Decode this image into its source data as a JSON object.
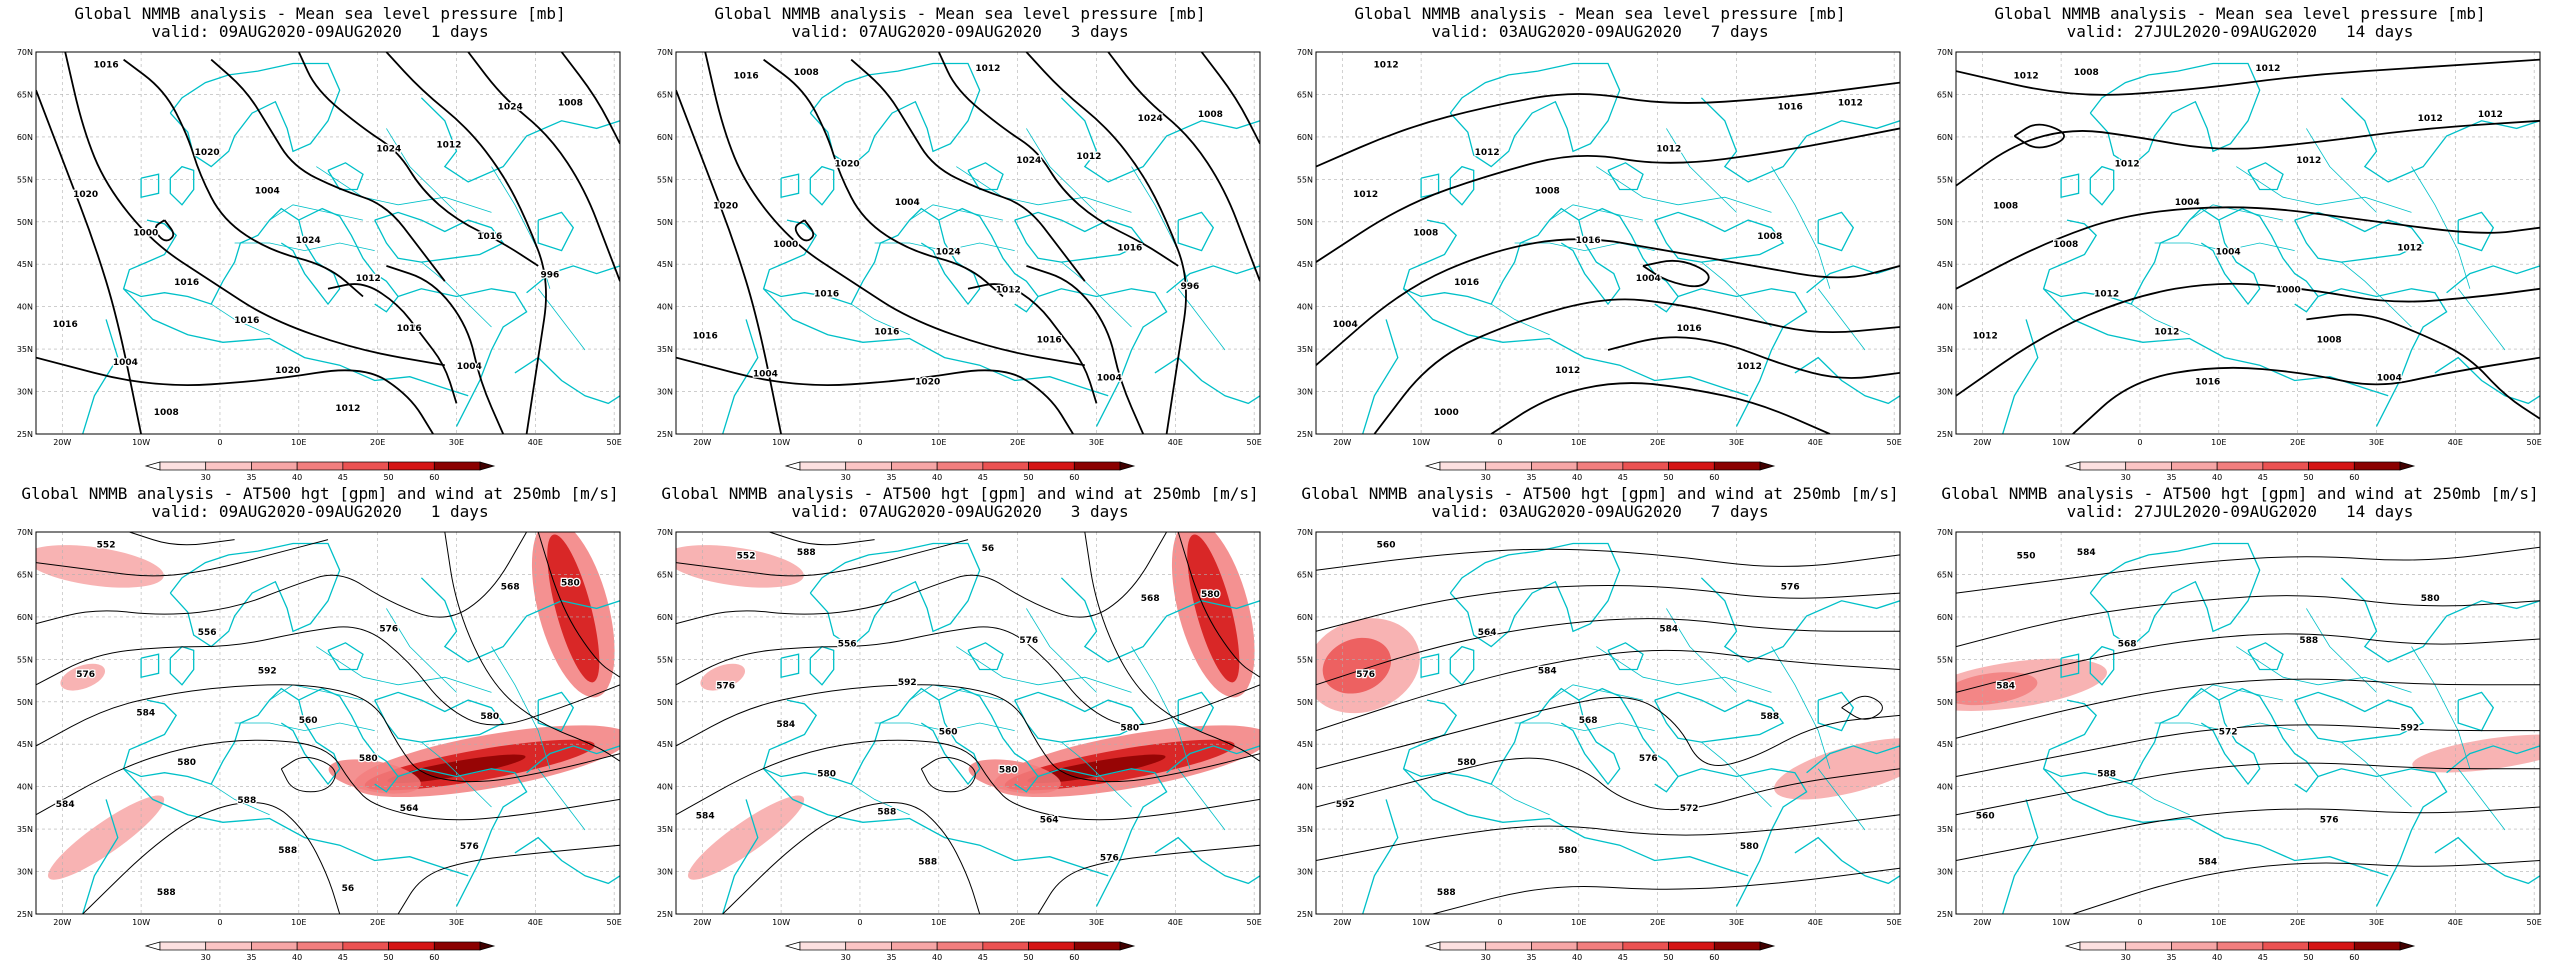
{
  "panels": [
    {
      "title": "Global NMMB analysis - Mean sea level pressure [mb]",
      "valid": "valid: 09AUG2020-09AUG2020   1 days",
      "isobars": [
        "1016",
        "1020",
        "1024",
        "1016",
        "1024",
        "1020",
        "1016",
        "1020",
        "1024",
        "1016",
        "1016",
        "1008",
        "1004",
        "1012",
        "1004",
        "1008",
        "1000",
        "1016",
        "1012",
        "1012",
        "996",
        "1004"
      ]
    },
    {
      "title": "Global NMMB analysis - Mean sea level pressure [mb]",
      "valid": "valid: 07AUG2020-09AUG2020   3 days",
      "isobars": [
        "1016",
        "1020",
        "1024",
        "1016",
        "1024",
        "1020",
        "1016",
        "1020",
        "1024",
        "1016",
        "1016",
        "1008",
        "1004",
        "1012",
        "1004",
        "1008",
        "1000",
        "1016",
        "1012",
        "1012",
        "996",
        "1004"
      ]
    },
    {
      "title": "Global NMMB analysis - Mean sea level pressure [mb]",
      "valid": "valid: 03AUG2020-09AUG2020   7 days",
      "isobars": [
        "1012",
        "1012",
        "1016",
        "1016",
        "1016",
        "1012",
        "1016",
        "1012",
        "1012",
        "1008",
        "1004",
        "1000",
        "1008",
        "1004",
        "1012",
        "1012",
        "1008"
      ]
    },
    {
      "title": "Global NMMB analysis - Mean sea level pressure [mb]",
      "valid": "valid: 27JUL2020-09AUG2020   14 days",
      "isobars": [
        "1012",
        "1012",
        "1004",
        "1008",
        "1012",
        "1008",
        "1012",
        "1016",
        "1012",
        "1012",
        "1012",
        "1008",
        "1004",
        "1000",
        "1004",
        "1012",
        "1008",
        "1012",
        "1012"
      ]
    },
    {
      "title": "Global NMMB analysis - AT500 hgt [gpm] and wind at 250mb [m/s]",
      "valid": "valid: 09AUG2020-09AUG2020   1 days",
      "isobars": [
        "552",
        "556",
        "560",
        "564",
        "568",
        "576",
        "580",
        "588",
        "576",
        "580",
        "584",
        "588",
        "592",
        "580",
        "576",
        "580",
        "584",
        "588",
        "56"
      ]
    },
    {
      "title": "Global NMMB analysis - AT500 hgt [gpm] and wind at 250mb [m/s]",
      "valid": "valid: 07AUG2020-09AUG2020   3 days",
      "isobars": [
        "552",
        "556",
        "560",
        "564",
        "568",
        "576",
        "580",
        "588",
        "576",
        "580",
        "584",
        "588",
        "592",
        "580",
        "576",
        "580",
        "584",
        "588",
        "56"
      ]
    },
    {
      "title": "Global NMMB analysis - AT500 hgt [gpm] and wind at 250mb [m/s]",
      "valid": "valid: 03AUG2020-09AUG2020   7 days",
      "isobars": [
        "560",
        "564",
        "568",
        "572",
        "576",
        "576",
        "580",
        "580",
        "584",
        "588",
        "592",
        "588",
        "584",
        "576",
        "580"
      ]
    },
    {
      "title": "Global NMMB analysis - AT500 hgt [gpm] and wind at 250mb [m/s]",
      "valid": "valid: 27JUL2020-09AUG2020   14 days",
      "isobars": [
        "550",
        "568",
        "572",
        "576",
        "580",
        "584",
        "588",
        "584",
        "588",
        "592",
        "560",
        "584"
      ]
    }
  ],
  "lat_labels": [
    "70N",
    "65N",
    "60N",
    "55N",
    "50N",
    "45N",
    "40N",
    "35N",
    "30N",
    "25N"
  ],
  "lon_labels": [
    "20W",
    "10W",
    "0",
    "10E",
    "20E",
    "30E",
    "40E",
    "50E"
  ],
  "colorbar_labels": [
    "30",
    "35",
    "40",
    "45",
    "50",
    "60"
  ],
  "colors": {
    "coast": "#00c0c8",
    "contour": "#000000",
    "grid": "#b0b0b0",
    "wind_shades": [
      "#fde0e0",
      "#fbc4c4",
      "#f7a6a6",
      "#f27e7e",
      "#eb5252",
      "#d41414",
      "#8b0000"
    ]
  }
}
